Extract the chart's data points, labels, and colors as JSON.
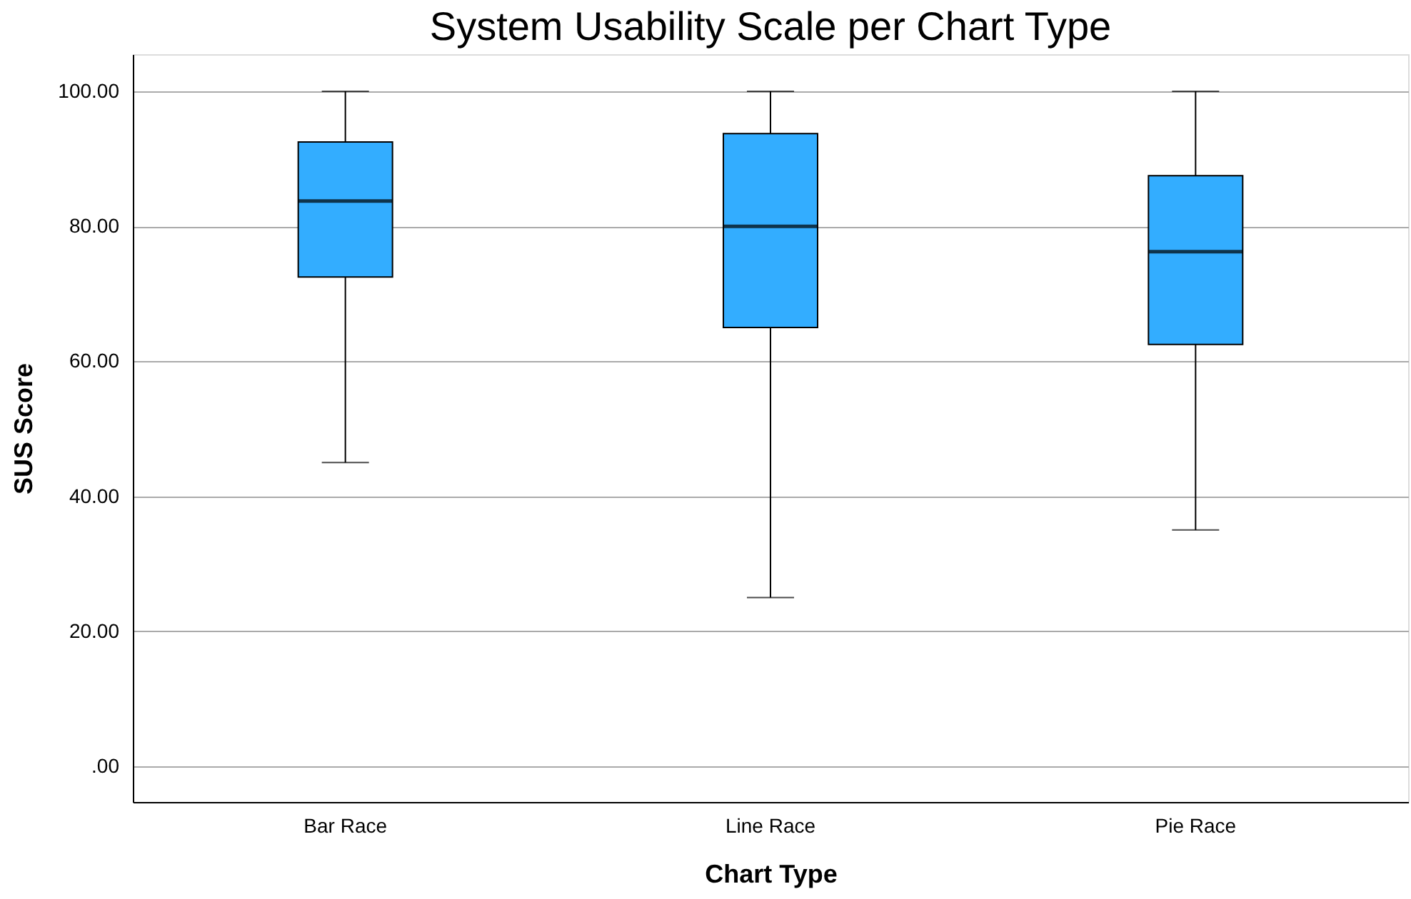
{
  "chart_data": {
    "type": "box",
    "title": "System Usability Scale per Chart Type",
    "xlabel": "Chart Type",
    "ylabel": "SUS Score",
    "categories": [
      "Bar Race",
      "Line Race",
      "Pie Race"
    ],
    "boxes": [
      {
        "low": 45,
        "q1": 72.5,
        "median": 83.75,
        "q3": 92.5,
        "high": 100
      },
      {
        "low": 25,
        "q1": 65,
        "median": 80,
        "q3": 93.75,
        "high": 100
      },
      {
        "low": 35,
        "q1": 62.5,
        "median": 76.25,
        "q3": 87.5,
        "high": 100
      }
    ],
    "color": "#33adff",
    "ylim": [
      -5.3,
      105.5
    ],
    "yticks": [
      {
        "value": 0,
        "label": ".00"
      },
      {
        "value": 20,
        "label": "20.00"
      },
      {
        "value": 40,
        "label": "40.00"
      },
      {
        "value": 60,
        "label": "60.00"
      },
      {
        "value": 80,
        "label": "80.00"
      },
      {
        "value": 100,
        "label": "100.00"
      }
    ],
    "grid": "y"
  }
}
